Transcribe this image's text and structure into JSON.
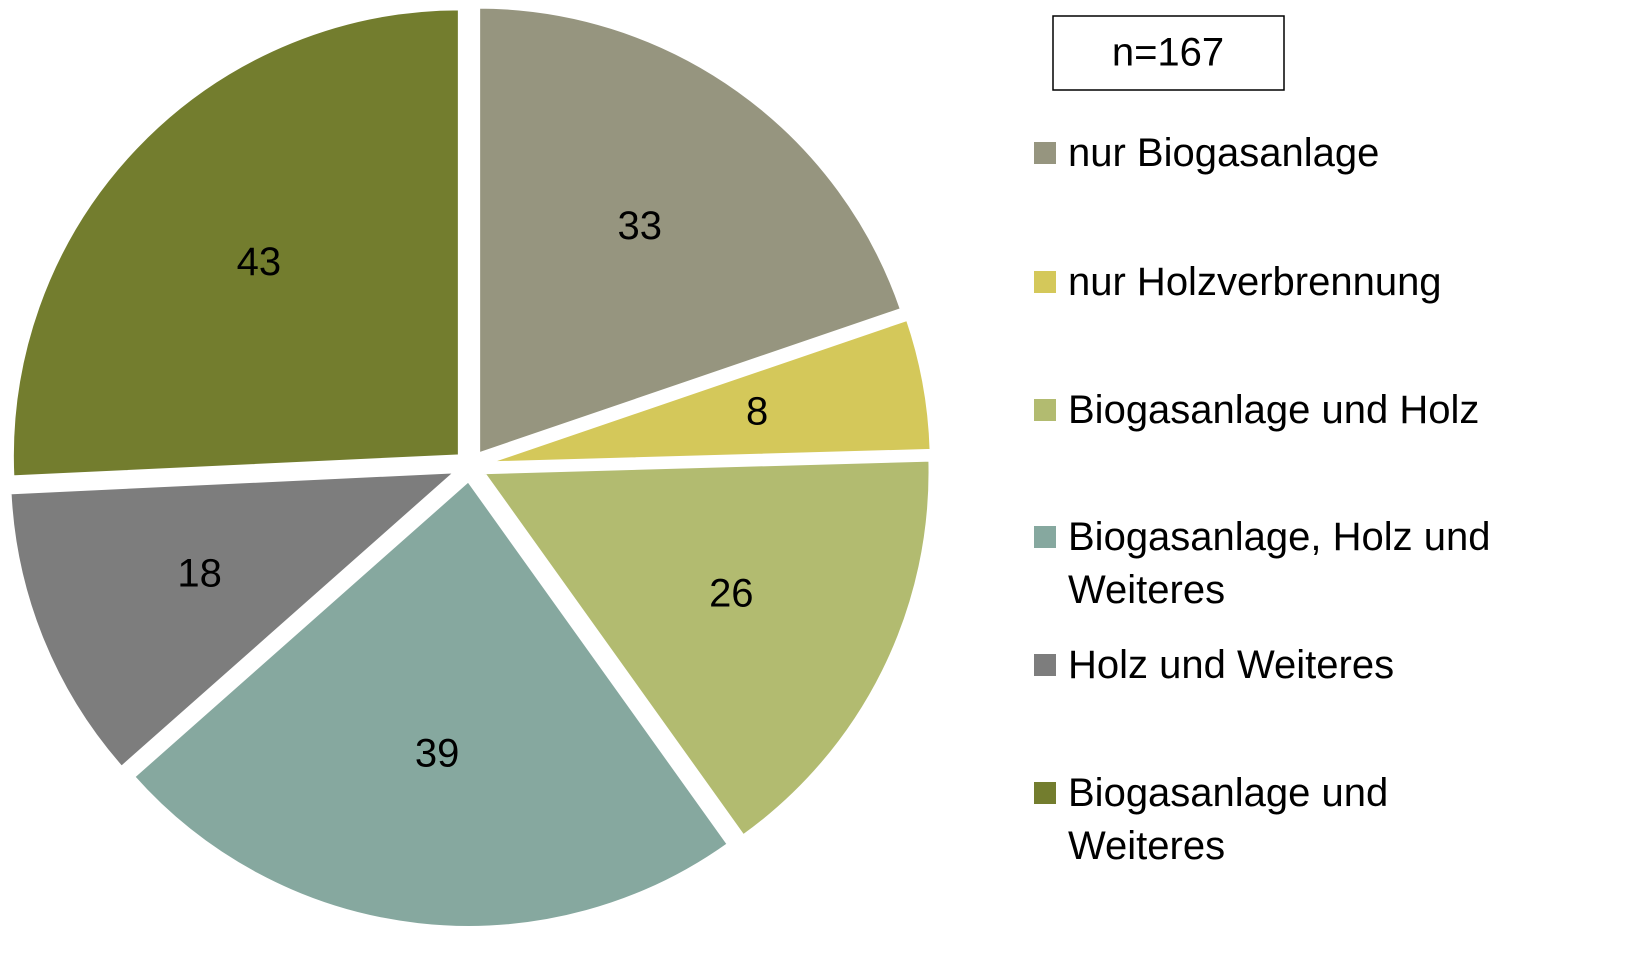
{
  "chart_data": {
    "type": "pie",
    "annotation": "n=167",
    "categories": [
      "nur Biogasanlage",
      "nur Holzverbrennung",
      "Biogasanlage und Holz",
      "Biogasanlage, Holz und Weiteres",
      "Holz und Weiteres",
      "Biogasanlage und Weiteres"
    ],
    "values": [
      33,
      8,
      26,
      39,
      18,
      43
    ],
    "colors": [
      "#96957f",
      "#d4c85a",
      "#b2bb70",
      "#86a89f",
      "#7d7d7d",
      "#737d2e"
    ]
  }
}
